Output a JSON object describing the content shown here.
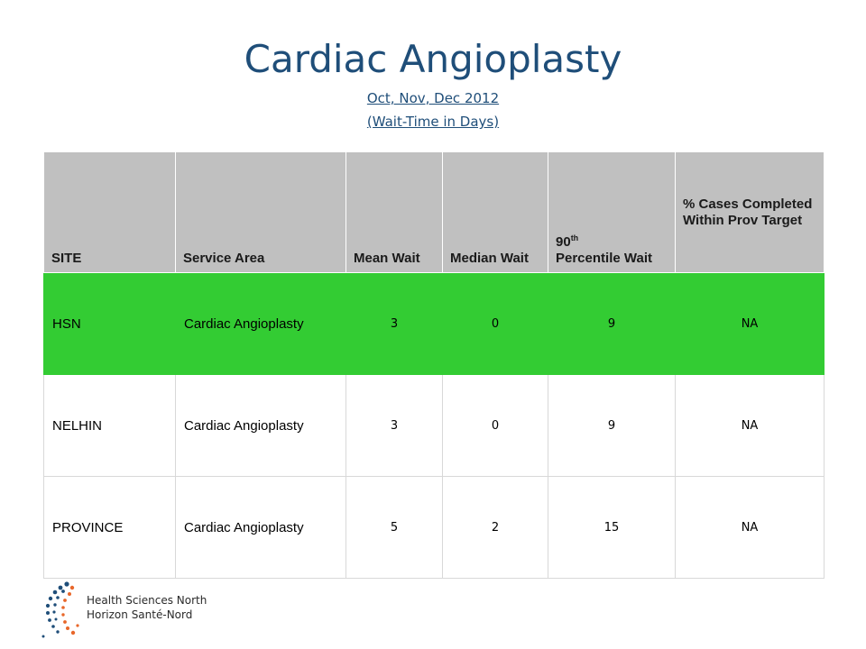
{
  "title": "Cardiac Angioplasty",
  "subtitle_period": "Oct, Nov, Dec 2012",
  "subtitle_unit": "(Wait-Time in Days)",
  "headers": {
    "site": "SITE",
    "service": "Service Area",
    "mean": "Mean Wait",
    "median": "Median Wait",
    "p90_num": "90",
    "p90_sup": "th",
    "p90_rest": "Percentile Wait",
    "pct": "% Cases Completed Within Prov Target"
  },
  "rows": [
    {
      "site": "HSN",
      "service": "Cardiac Angioplasty",
      "mean": "3",
      "median": "0",
      "p90": "9",
      "pct": "NA"
    },
    {
      "site": "NELHIN",
      "service": "Cardiac Angioplasty",
      "mean": "3",
      "median": "0",
      "p90": "9",
      "pct": "NA"
    },
    {
      "site": "PROVINCE",
      "service": "Cardiac Angioplasty",
      "mean": "5",
      "median": "2",
      "p90": "15",
      "pct": "NA"
    }
  ],
  "colors": {
    "title": "#1f4e79",
    "header_bg": "#c0c0c0",
    "highlight_row": "#33cc33",
    "logo_blue": "#1f4e79",
    "logo_orange": "#e8672a"
  },
  "logo": {
    "line1": "Health Sciences North",
    "line2": "Horizon Santé-Nord"
  }
}
